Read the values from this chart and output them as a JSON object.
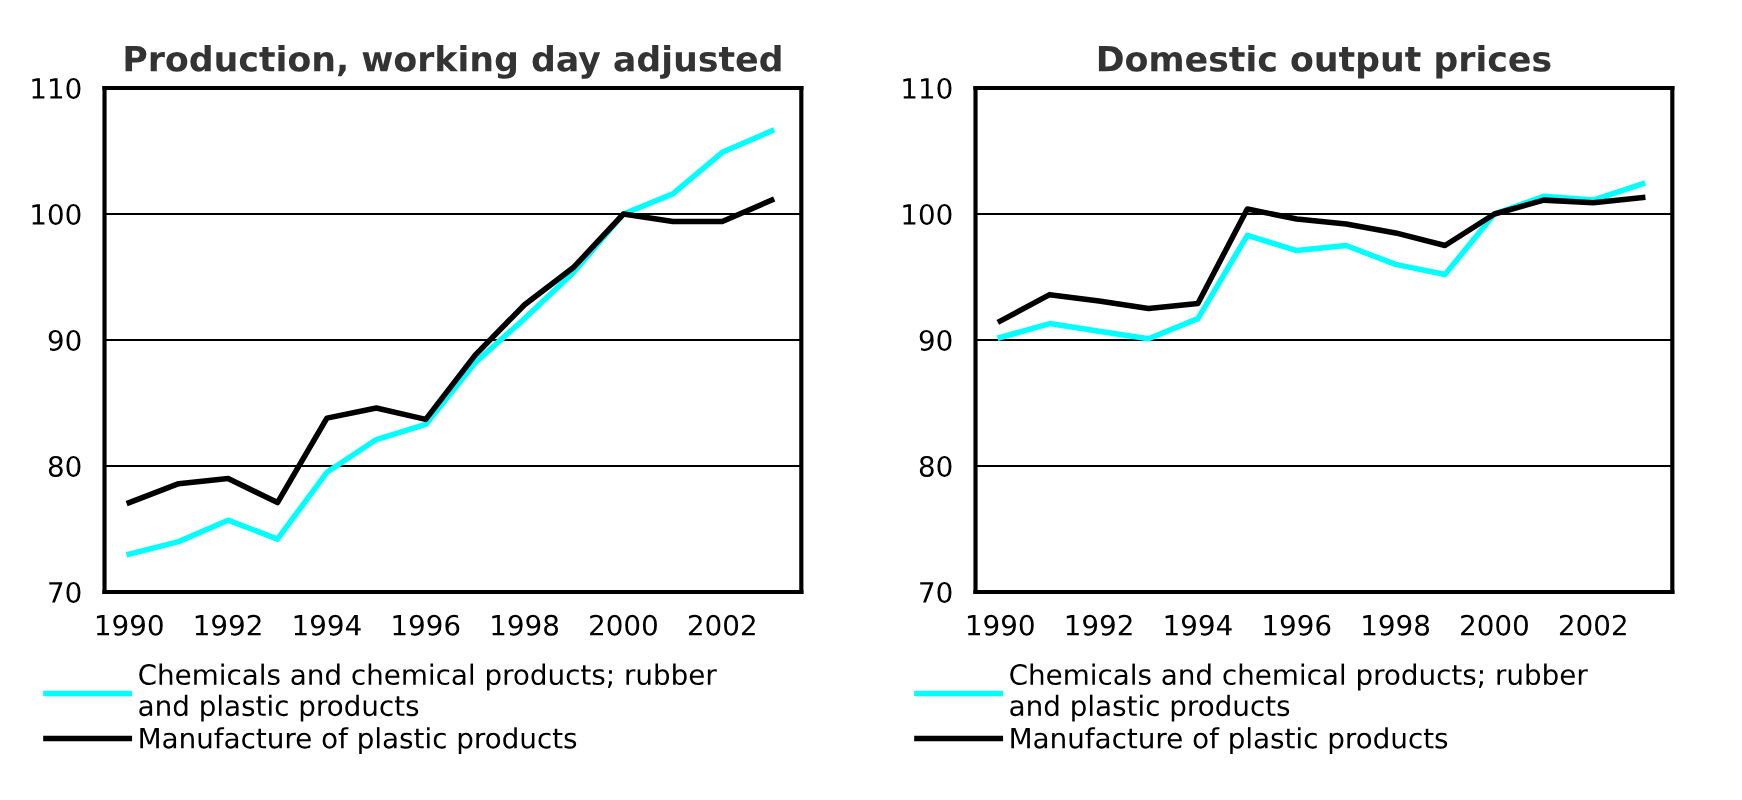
{
  "chart_data": [
    {
      "type": "line",
      "title": "Production, working day adjusted",
      "x": [
        1990,
        1991,
        1992,
        1993,
        1994,
        1995,
        1996,
        1997,
        1998,
        1999,
        2000,
        2001,
        2002,
        2003
      ],
      "series": [
        {
          "name": "Chemicals and chemical products; rubber\nand plastic products",
          "color": "#00ffff",
          "values": [
            73,
            74,
            75.7,
            74.2,
            79.5,
            82.1,
            83.3,
            88.2,
            91.7,
            95.4,
            100,
            101.6,
            104.9,
            106.6
          ]
        },
        {
          "name": "Manufacture of plastic products",
          "color": "#000000",
          "values": [
            77.1,
            78.6,
            79,
            77.1,
            83.8,
            84.6,
            83.7,
            88.8,
            92.8,
            95.8,
            100,
            99.4,
            99.4,
            101.1
          ]
        }
      ],
      "xlim": [
        1989.5,
        2003.6
      ],
      "xticks": [
        1990,
        1992,
        1994,
        1996,
        1998,
        2000,
        2002
      ],
      "ylim": [
        70,
        110
      ],
      "yticks": [
        70,
        80,
        90,
        100,
        110
      ],
      "grid": "y",
      "legend": "bottom"
    },
    {
      "type": "line",
      "title": "Domestic output prices",
      "x": [
        1990,
        1991,
        1992,
        1993,
        1994,
        1995,
        1996,
        1997,
        1998,
        1999,
        2000,
        2001,
        2002,
        2003
      ],
      "series": [
        {
          "name": "Chemicals and chemical products; rubber\nand plastic products",
          "color": "#00ffff",
          "values": [
            90.2,
            91.3,
            90.7,
            90.1,
            91.7,
            98.3,
            97.1,
            97.5,
            96,
            95.2,
            100,
            101.4,
            101.1,
            102.4
          ]
        },
        {
          "name": "Manufacture of plastic products",
          "color": "#000000",
          "values": [
            91.5,
            93.6,
            93.1,
            92.5,
            92.9,
            100.4,
            99.6,
            99.2,
            98.5,
            97.5,
            100,
            101.1,
            100.9,
            101.3
          ]
        }
      ],
      "xlim": [
        1989.5,
        2003.6
      ],
      "xticks": [
        1990,
        1992,
        1994,
        1996,
        1998,
        2000,
        2002
      ],
      "ylim": [
        70,
        110
      ],
      "yticks": [
        70,
        80,
        90,
        100,
        110
      ],
      "grid": "y",
      "legend": "bottom"
    }
  ]
}
